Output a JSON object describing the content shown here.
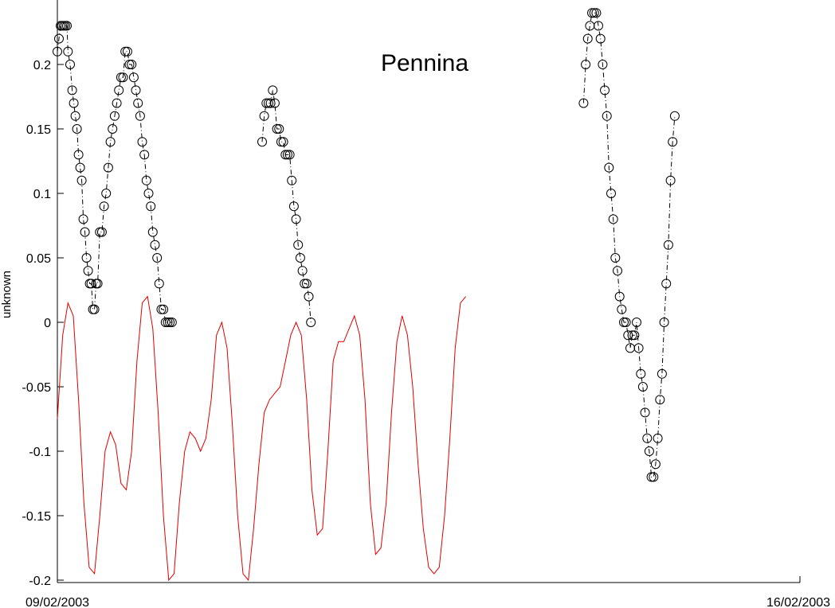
{
  "chart_data": {
    "type": "line",
    "title": "Pennina",
    "xlabel": "",
    "ylabel": "unknown",
    "x_tick_labels": [
      "09/02/2003",
      "16/02/2003"
    ],
    "y_ticks": [
      0.2,
      0.15,
      0.1,
      0.05,
      0,
      -0.05,
      -0.1,
      -0.15,
      -0.2
    ],
    "y_tick_labels": [
      "0.2",
      "0.15",
      "0.1",
      "0.05",
      "0",
      "-0.05",
      "-0.1",
      "-0.15",
      "-0.2"
    ],
    "ylim": [
      -0.2,
      0.25
    ],
    "xlim_days": [
      0,
      7
    ],
    "grid": false,
    "legend": "none",
    "series": [
      {
        "style": "observed",
        "color": "#000000",
        "marker": "circle",
        "line": "dash-dot",
        "segments": [
          [
            [
              0.0,
              0.21
            ],
            [
              0.015,
              0.22
            ],
            [
              0.03,
              0.23
            ],
            [
              0.045,
              0.23
            ],
            [
              0.06,
              0.23
            ],
            [
              0.075,
              0.23
            ],
            [
              0.09,
              0.23
            ],
            [
              0.1,
              0.21
            ],
            [
              0.12,
              0.2
            ],
            [
              0.14,
              0.18
            ],
            [
              0.155,
              0.17
            ],
            [
              0.17,
              0.16
            ],
            [
              0.185,
              0.15
            ],
            [
              0.2,
              0.13
            ],
            [
              0.215,
              0.12
            ],
            [
              0.23,
              0.11
            ],
            [
              0.245,
              0.08
            ],
            [
              0.26,
              0.07
            ],
            [
              0.275,
              0.05
            ],
            [
              0.29,
              0.04
            ],
            [
              0.305,
              0.03
            ],
            [
              0.32,
              0.03
            ],
            [
              0.335,
              0.01
            ],
            [
              0.35,
              0.01
            ],
            [
              0.365,
              0.03
            ],
            [
              0.38,
              0.03
            ],
            [
              0.4,
              0.07
            ],
            [
              0.42,
              0.07
            ],
            [
              0.44,
              0.09
            ],
            [
              0.46,
              0.1
            ],
            [
              0.48,
              0.12
            ],
            [
              0.5,
              0.14
            ],
            [
              0.52,
              0.15
            ],
            [
              0.54,
              0.16
            ],
            [
              0.56,
              0.17
            ],
            [
              0.58,
              0.18
            ],
            [
              0.6,
              0.19
            ],
            [
              0.62,
              0.19
            ],
            [
              0.64,
              0.21
            ],
            [
              0.66,
              0.21
            ],
            [
              0.68,
              0.2
            ],
            [
              0.7,
              0.2
            ],
            [
              0.72,
              0.19
            ],
            [
              0.74,
              0.18
            ],
            [
              0.76,
              0.17
            ],
            [
              0.78,
              0.16
            ],
            [
              0.8,
              0.14
            ],
            [
              0.82,
              0.13
            ],
            [
              0.84,
              0.11
            ],
            [
              0.86,
              0.1
            ],
            [
              0.88,
              0.09
            ],
            [
              0.9,
              0.07
            ],
            [
              0.92,
              0.06
            ],
            [
              0.94,
              0.05
            ],
            [
              0.96,
              0.03
            ],
            [
              0.98,
              0.01
            ],
            [
              1.0,
              0.01
            ],
            [
              1.02,
              0.0
            ],
            [
              1.04,
              0.0
            ],
            [
              1.06,
              0.0
            ],
            [
              1.08,
              0.0
            ]
          ],
          [
            [
              1.93,
              0.14
            ],
            [
              1.95,
              0.16
            ],
            [
              1.97,
              0.17
            ],
            [
              1.99,
              0.17
            ],
            [
              2.01,
              0.17
            ],
            [
              2.03,
              0.18
            ],
            [
              2.05,
              0.17
            ],
            [
              2.07,
              0.15
            ],
            [
              2.09,
              0.15
            ],
            [
              2.11,
              0.14
            ],
            [
              2.13,
              0.14
            ],
            [
              2.15,
              0.13
            ],
            [
              2.17,
              0.13
            ],
            [
              2.19,
              0.13
            ],
            [
              2.21,
              0.11
            ],
            [
              2.23,
              0.09
            ],
            [
              2.25,
              0.08
            ],
            [
              2.27,
              0.06
            ],
            [
              2.29,
              0.05
            ],
            [
              2.31,
              0.04
            ],
            [
              2.33,
              0.03
            ],
            [
              2.35,
              0.03
            ],
            [
              2.37,
              0.02
            ],
            [
              2.39,
              0.0
            ]
          ],
          [
            [
              4.96,
              0.17
            ],
            [
              4.98,
              0.2
            ],
            [
              5.0,
              0.22
            ],
            [
              5.02,
              0.23
            ],
            [
              5.04,
              0.24
            ],
            [
              5.06,
              0.24
            ],
            [
              5.08,
              0.24
            ],
            [
              5.1,
              0.23
            ],
            [
              5.12,
              0.22
            ],
            [
              5.14,
              0.2
            ],
            [
              5.16,
              0.18
            ],
            [
              5.18,
              0.16
            ],
            [
              5.2,
              0.12
            ],
            [
              5.22,
              0.1
            ],
            [
              5.24,
              0.08
            ],
            [
              5.26,
              0.05
            ],
            [
              5.28,
              0.04
            ],
            [
              5.3,
              0.02
            ],
            [
              5.32,
              0.01
            ],
            [
              5.34,
              0.0
            ],
            [
              5.36,
              0.0
            ],
            [
              5.38,
              -0.01
            ],
            [
              5.4,
              -0.02
            ],
            [
              5.42,
              -0.01
            ],
            [
              5.44,
              -0.01
            ],
            [
              5.46,
              0.0
            ],
            [
              5.48,
              -0.02
            ],
            [
              5.5,
              -0.04
            ],
            [
              5.52,
              -0.05
            ],
            [
              5.54,
              -0.07
            ],
            [
              5.56,
              -0.09
            ],
            [
              5.58,
              -0.1
            ],
            [
              5.6,
              -0.12
            ],
            [
              5.62,
              -0.12
            ],
            [
              5.64,
              -0.11
            ],
            [
              5.66,
              -0.09
            ],
            [
              5.68,
              -0.06
            ],
            [
              5.7,
              -0.04
            ],
            [
              5.72,
              0.0
            ],
            [
              5.74,
              0.03
            ],
            [
              5.76,
              0.06
            ],
            [
              5.78,
              0.11
            ],
            [
              5.8,
              0.14
            ],
            [
              5.82,
              0.16
            ]
          ]
        ]
      },
      {
        "style": "predicted",
        "color": "#e00000",
        "marker": "none",
        "line": "solid",
        "points": [
          [
            0.0,
            -0.075
          ],
          [
            0.05,
            -0.01
          ],
          [
            0.1,
            0.015
          ],
          [
            0.15,
            0.005
          ],
          [
            0.2,
            -0.06
          ],
          [
            0.25,
            -0.14
          ],
          [
            0.3,
            -0.19
          ],
          [
            0.35,
            -0.195
          ],
          [
            0.4,
            -0.15
          ],
          [
            0.45,
            -0.1
          ],
          [
            0.5,
            -0.085
          ],
          [
            0.55,
            -0.095
          ],
          [
            0.6,
            -0.125
          ],
          [
            0.65,
            -0.13
          ],
          [
            0.7,
            -0.1
          ],
          [
            0.75,
            -0.03
          ],
          [
            0.8,
            0.015
          ],
          [
            0.85,
            0.02
          ],
          [
            0.9,
            -0.005
          ],
          [
            0.95,
            -0.07
          ],
          [
            1.0,
            -0.15
          ],
          [
            1.05,
            -0.2
          ],
          [
            1.1,
            -0.195
          ],
          [
            1.15,
            -0.14
          ],
          [
            1.2,
            -0.1
          ],
          [
            1.25,
            -0.085
          ],
          [
            1.3,
            -0.09
          ],
          [
            1.35,
            -0.1
          ],
          [
            1.4,
            -0.09
          ],
          [
            1.45,
            -0.06
          ],
          [
            1.5,
            -0.01
          ],
          [
            1.55,
            0.0
          ],
          [
            1.6,
            -0.02
          ],
          [
            1.65,
            -0.08
          ],
          [
            1.7,
            -0.15
          ],
          [
            1.75,
            -0.195
          ],
          [
            1.8,
            -0.2
          ],
          [
            1.85,
            -0.16
          ],
          [
            1.9,
            -0.11
          ],
          [
            1.95,
            -0.07
          ],
          [
            2.0,
            -0.06
          ],
          [
            2.05,
            -0.055
          ],
          [
            2.1,
            -0.05
          ],
          [
            2.15,
            -0.03
          ],
          [
            2.2,
            -0.01
          ],
          [
            2.25,
            0.0
          ],
          [
            2.3,
            -0.01
          ],
          [
            2.35,
            -0.06
          ],
          [
            2.4,
            -0.13
          ],
          [
            2.45,
            -0.165
          ],
          [
            2.5,
            -0.16
          ],
          [
            2.55,
            -0.1
          ],
          [
            2.6,
            -0.03
          ],
          [
            2.65,
            -0.015
          ],
          [
            2.7,
            -0.015
          ],
          [
            2.75,
            -0.005
          ],
          [
            2.8,
            0.005
          ],
          [
            2.85,
            -0.01
          ],
          [
            2.9,
            -0.06
          ],
          [
            2.95,
            -0.14
          ],
          [
            3.0,
            -0.18
          ],
          [
            3.05,
            -0.175
          ],
          [
            3.1,
            -0.14
          ],
          [
            3.15,
            -0.07
          ],
          [
            3.2,
            -0.015
          ],
          [
            3.25,
            0.005
          ],
          [
            3.3,
            -0.01
          ],
          [
            3.35,
            -0.05
          ],
          [
            3.4,
            -0.11
          ],
          [
            3.45,
            -0.16
          ],
          [
            3.5,
            -0.19
          ],
          [
            3.55,
            -0.195
          ],
          [
            3.6,
            -0.19
          ],
          [
            3.65,
            -0.15
          ],
          [
            3.7,
            -0.09
          ],
          [
            3.75,
            -0.02
          ],
          [
            3.8,
            0.015
          ],
          [
            3.85,
            0.02
          ]
        ]
      }
    ]
  }
}
